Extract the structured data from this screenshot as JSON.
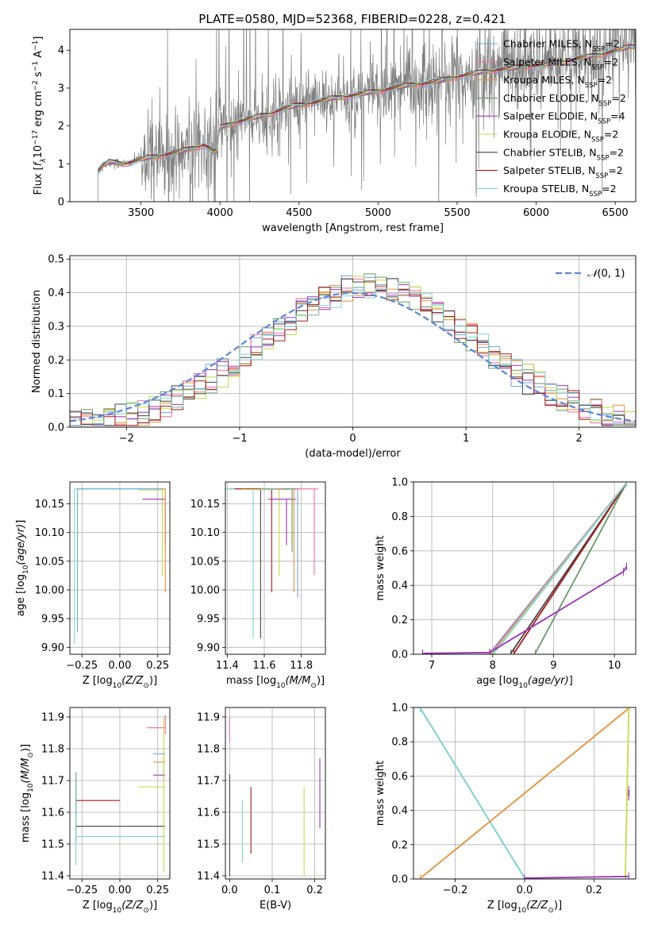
{
  "figure_title": "PLATE=0580, MJD=52368, FIBERID=0228, z=0.421",
  "colors": {
    "c_miles": "#6fa8dc",
    "s_miles": "#f06aa8",
    "k_miles": "#e69138",
    "c_elodie": "#6b9a6b",
    "s_elodie": "#9b34b8",
    "k_elodie": "#c9d84a",
    "c_stelib": "#444444",
    "s_stelib": "#aa1a1a",
    "k_stelib": "#7fd3d3",
    "data": "#808080",
    "gauss": "#5b86d6"
  },
  "legend_spectrum": [
    {
      "pre": "Chabrier MILES, N",
      "sub": "SSP",
      "post": "=2",
      "key": "c_miles"
    },
    {
      "pre": "Salpeter MILES, N",
      "sub": "SSP",
      "post": "=2",
      "key": "s_miles"
    },
    {
      "pre": "Kroupa MILES, N",
      "sub": "SSP",
      "post": "=2",
      "key": "k_miles"
    },
    {
      "pre": "Chabrier ELODIE, N",
      "sub": "SSP",
      "post": "=2",
      "key": "c_elodie"
    },
    {
      "pre": "Salpeter ELODIE, N",
      "sub": "SSP",
      "post": "=4",
      "key": "s_elodie"
    },
    {
      "pre": "Kroupa ELODIE, N",
      "sub": "SSP",
      "post": "=2",
      "key": "k_elodie"
    },
    {
      "pre": "Chabrier STELIB, N",
      "sub": "SSP",
      "post": "=2",
      "key": "c_stelib"
    },
    {
      "pre": "Salpeter STELIB, N",
      "sub": "SSP",
      "post": "=2",
      "key": "s_stelib"
    },
    {
      "pre": "Kroupa STELIB, N",
      "sub": "SSP",
      "post": "=2",
      "key": "k_stelib"
    }
  ],
  "chart_data": [
    {
      "id": "spectrum",
      "type": "line",
      "xlabel": "wavelength [Angstrom, rest frame]",
      "ylabel": {
        "pre": "Flux [",
        "fl": "f",
        "flsub": "λ",
        "mid": "10",
        "exp1": "−17",
        "mid2": " erg cm",
        "exp2": "−2",
        "mid3": " s",
        "exp3": "−1",
        "mid4": " A",
        "exp4": "−1",
        "post": "]"
      },
      "xlim": [
        3050,
        6630
      ],
      "ylim": [
        0,
        4.55
      ],
      "xticks": [
        3500,
        4000,
        4500,
        5000,
        5500,
        6000,
        6500
      ],
      "yticks": [
        0,
        1,
        2,
        3,
        4
      ],
      "continuum_x": [
        3230,
        3260,
        3300,
        3400,
        3500,
        3600,
        3700,
        3800,
        3900,
        3970,
        4000,
        4100,
        4200,
        4300,
        4400,
        4500,
        4600,
        4700,
        4800,
        4900,
        5000,
        5100,
        5200,
        5300,
        5400,
        5500,
        5600,
        5700,
        5800,
        5900,
        6000,
        6100,
        6200,
        6300,
        6400,
        6500,
        6600
      ],
      "continuum_y": [
        0.8,
        0.95,
        1.05,
        1.0,
        1.12,
        1.2,
        1.28,
        1.38,
        1.5,
        1.3,
        1.95,
        2.1,
        2.2,
        2.3,
        2.45,
        2.55,
        2.62,
        2.72,
        2.78,
        2.85,
        2.92,
        3.0,
        3.08,
        3.12,
        3.2,
        3.3,
        3.38,
        3.45,
        3.5,
        3.55,
        3.6,
        3.65,
        3.72,
        3.8,
        3.88,
        3.98,
        4.1
      ]
    },
    {
      "id": "residuals",
      "type": "histogram",
      "xlabel": "(data-model)/error",
      "ylabel": "Normed distribution",
      "xlim": [
        -2.5,
        2.5
      ],
      "ylim": [
        0,
        0.51
      ],
      "xticks": [
        -2,
        -1,
        0,
        1,
        2
      ],
      "yticks": [
        0.0,
        0.1,
        0.2,
        0.3,
        0.4,
        0.5
      ],
      "legend": {
        "pre": "𝒩",
        "post": "(0, 1)"
      },
      "gaussian": {
        "mu": 0,
        "sigma": 1
      }
    },
    {
      "id": "age_vs_Z",
      "type": "errorbar",
      "xlabel": {
        "pre": "Z [log",
        "sub": "10",
        "it": "(Z/Z",
        "odot": "⊙",
        "post": ")]"
      },
      "ylabel": {
        "pre": "age  [log",
        "sub": "10",
        "it": "(age/yr)",
        "post": "]"
      },
      "xlim": [
        -0.33,
        0.33
      ],
      "ylim": [
        9.888,
        10.188
      ],
      "xticks": [
        -0.25,
        0.0,
        0.25
      ],
      "yticks": [
        9.9,
        9.95,
        10.0,
        10.05,
        10.1,
        10.15
      ],
      "points": [
        {
          "key": "k_stelib",
          "x": -0.3,
          "y": 10.176,
          "xerr": [
            0,
            0.6
          ],
          "yerr": [
            0.27,
            0
          ]
        },
        {
          "key": "c_miles",
          "x": -0.28,
          "y": 10.176,
          "xerr": [
            0,
            0.58
          ],
          "yerr": [
            0.25,
            0
          ]
        },
        {
          "key": "k_elodie",
          "x": 0.28,
          "y": 10.174,
          "xerr": [
            0.16,
            0.01
          ],
          "yerr": [
            0.15,
            0
          ]
        },
        {
          "key": "s_elodie",
          "x": 0.3,
          "y": 10.158,
          "xerr": [
            0.15,
            0
          ],
          "yerr": [
            0.08,
            0
          ]
        },
        {
          "key": "k_miles",
          "x": 0.3,
          "y": 10.176,
          "xerr": [
            0.02,
            0
          ],
          "yerr": [
            0.18,
            0
          ]
        }
      ]
    },
    {
      "id": "age_vs_mass",
      "type": "errorbar",
      "xlabel": {
        "pre": "mass [log",
        "sub": "10",
        "it": "(M/M",
        "odot": "⊙",
        "post": ")]"
      },
      "ylabel": null,
      "xlim": [
        11.39,
        11.93
      ],
      "ylim": [
        9.888,
        10.188
      ],
      "xticks": [
        11.4,
        11.6,
        11.8
      ],
      "yticks": [
        9.9,
        9.95,
        10.0,
        10.05,
        10.1,
        10.15
      ],
      "points": [
        {
          "key": "c_stelib",
          "x": 11.58,
          "y": 10.176,
          "xerr": [
            0.17,
            0.05
          ],
          "yerr": [
            0.26,
            0
          ]
        },
        {
          "key": "k_stelib",
          "x": 11.54,
          "y": 10.176,
          "xerr": [
            0.15,
            0.2
          ],
          "yerr": [
            0.26,
            0
          ]
        },
        {
          "key": "s_stelib",
          "x": 11.64,
          "y": 10.176,
          "xerr": [
            0.2,
            0.1
          ],
          "yerr": [
            0.18,
            0
          ]
        },
        {
          "key": "k_elodie",
          "x": 11.68,
          "y": 10.175,
          "xerr": [
            0.2,
            0.05
          ],
          "yerr": [
            0.15,
            0
          ]
        },
        {
          "key": "s_elodie",
          "x": 11.72,
          "y": 10.158,
          "xerr": [
            0.1,
            0.05
          ],
          "yerr": [
            0.08,
            0
          ]
        },
        {
          "key": "k_miles",
          "x": 11.76,
          "y": 10.176,
          "xerr": [
            0.15,
            0.02
          ],
          "yerr": [
            0.18,
            0
          ]
        },
        {
          "key": "c_miles",
          "x": 11.78,
          "y": 10.176,
          "xerr": [
            0.2,
            0.01
          ],
          "yerr": [
            0.19,
            0
          ]
        },
        {
          "key": "s_miles",
          "x": 11.87,
          "y": 10.176,
          "xerr": [
            0.2,
            0.02
          ],
          "yerr": [
            0.15,
            0
          ]
        },
        {
          "key": "c_elodie",
          "x": 11.75,
          "y": 10.176,
          "xerr": [
            0.05,
            0.02
          ],
          "yerr": [
            0.11,
            0
          ]
        }
      ]
    },
    {
      "id": "mass_weight_vs_age",
      "type": "line",
      "xlabel": {
        "pre": "age  [log",
        "sub": "10",
        "it": "(age/yr)",
        "post": "]"
      },
      "ylabel": "mass weight",
      "xlim": [
        6.7,
        10.35
      ],
      "ylim": [
        0,
        1.0
      ],
      "xticks": [
        7,
        8,
        9,
        10
      ],
      "yticks": [
        0.0,
        0.2,
        0.4,
        0.6,
        0.8,
        1.0
      ],
      "series": [
        {
          "key": "c_miles",
          "x": [
            7.95,
            10.2
          ],
          "y": [
            0.005,
            0.995
          ]
        },
        {
          "key": "s_miles",
          "x": [
            7.97,
            10.2
          ],
          "y": [
            0.005,
            0.995
          ]
        },
        {
          "key": "k_miles",
          "x": [
            8.0,
            10.2
          ],
          "y": [
            0.005,
            0.995
          ]
        },
        {
          "key": "c_elodie",
          "x": [
            8.7,
            10.2
          ],
          "y": [
            0.005,
            0.995
          ]
        },
        {
          "key": "k_elodie",
          "x": [
            8.0,
            10.2
          ],
          "y": [
            0.005,
            0.995
          ]
        },
        {
          "key": "c_stelib",
          "x": [
            8.3,
            10.2
          ],
          "y": [
            0.005,
            0.995
          ]
        },
        {
          "key": "s_stelib",
          "x": [
            8.35,
            10.2
          ],
          "y": [
            0.005,
            0.995
          ]
        },
        {
          "key": "k_stelib",
          "x": [
            8.02,
            10.2
          ],
          "y": [
            0.005,
            0.995
          ]
        },
        {
          "key": "s_elodie",
          "x": [
            6.85,
            7.95,
            10.15,
            10.2
          ],
          "y": [
            0.005,
            0.01,
            0.48,
            0.51
          ]
        }
      ]
    },
    {
      "id": "mass_vs_Z",
      "type": "errorbar",
      "xlabel": {
        "pre": "Z [log",
        "sub": "10",
        "it": "(Z/Z",
        "odot": "⊙",
        "post": ")]"
      },
      "ylabel": {
        "pre": "mass [log",
        "sub": "10",
        "it": "(M/M",
        "odot": "⊙",
        "post": ")]"
      },
      "xlim": [
        -0.33,
        0.33
      ],
      "ylim": [
        11.39,
        11.93
      ],
      "xticks": [
        -0.25,
        0.0,
        0.25
      ],
      "yticks": [
        11.4,
        11.5,
        11.6,
        11.7,
        11.8,
        11.9
      ],
      "points": [
        {
          "key": "s_stelib",
          "x": -0.29,
          "y": 11.637,
          "xerr": [
            0,
            0.29
          ],
          "yerr": [
            0.04,
            0.08
          ]
        },
        {
          "key": "c_stelib",
          "x": -0.29,
          "y": 11.556,
          "xerr": [
            0,
            0.59
          ],
          "yerr": [
            0.05,
            0.17
          ]
        },
        {
          "key": "k_stelib",
          "x": -0.29,
          "y": 11.524,
          "xerr": [
            0,
            0.59
          ],
          "yerr": [
            0.09,
            0.2
          ]
        },
        {
          "key": "s_miles",
          "x": 0.3,
          "y": 11.866,
          "xerr": [
            0.12,
            0
          ],
          "yerr": [
            0.02,
            0.04
          ]
        },
        {
          "key": "c_miles",
          "x": 0.29,
          "y": 11.784,
          "xerr": [
            0.07,
            0.01
          ],
          "yerr": [
            0.02,
            0.02
          ]
        },
        {
          "key": "k_miles",
          "x": 0.29,
          "y": 11.758,
          "xerr": [
            0.07,
            0.01
          ],
          "yerr": [
            0.02,
            0.02
          ]
        },
        {
          "key": "s_elodie",
          "x": 0.29,
          "y": 11.717,
          "xerr": [
            0.07,
            0.01
          ],
          "yerr": [
            0.02,
            0.02
          ]
        },
        {
          "key": "k_elodie",
          "x": 0.29,
          "y": 11.68,
          "xerr": [
            0.17,
            0.01
          ],
          "yerr": [
            0.27,
            0.22
          ]
        }
      ]
    },
    {
      "id": "mass_vs_EBV",
      "type": "errorbar",
      "xlabel": "E(B-V)",
      "ylabel": null,
      "xlim": [
        -0.01,
        0.225
      ],
      "ylim": [
        11.39,
        11.93
      ],
      "xticks": [
        0.0,
        0.1,
        0.2
      ],
      "yticks": [
        11.4,
        11.5,
        11.6,
        11.7,
        11.8,
        11.9
      ],
      "points": [
        {
          "key": "c_stelib",
          "x": 0.0,
          "y": 11.6,
          "xerr": [
            0,
            0
          ],
          "yerr": [
            0.2,
            0.12
          ]
        },
        {
          "key": "s_miles",
          "x": 0.0,
          "y": 11.87,
          "xerr": [
            0,
            0
          ],
          "yerr": [
            0.05,
            0.03
          ]
        },
        {
          "key": "k_stelib",
          "x": 0.03,
          "y": 11.54,
          "xerr": [
            0,
            0
          ],
          "yerr": [
            0.1,
            0.1
          ]
        },
        {
          "key": "s_stelib",
          "x": 0.05,
          "y": 11.58,
          "xerr": [
            0,
            0
          ],
          "yerr": [
            0.11,
            0.1
          ]
        },
        {
          "key": "k_elodie",
          "x": 0.175,
          "y": 11.55,
          "xerr": [
            0,
            0
          ],
          "yerr": [
            0.15,
            0.13
          ]
        },
        {
          "key": "s_elodie",
          "x": 0.212,
          "y": 11.66,
          "xerr": [
            0,
            0
          ],
          "yerr": [
            0.11,
            0.11
          ]
        }
      ]
    },
    {
      "id": "mass_weight_vs_Z",
      "type": "line",
      "xlabel": {
        "pre": "Z [log",
        "sub": "10",
        "it": "(Z/Z",
        "odot": "⊙",
        "post": ")]"
      },
      "ylabel": "mass weight",
      "xlim": [
        -0.32,
        0.32
      ],
      "ylim": [
        0,
        1.0
      ],
      "xticks": [
        -0.2,
        0.0,
        0.2
      ],
      "yticks": [
        0.0,
        0.2,
        0.4,
        0.6,
        0.8,
        1.0
      ],
      "series": [
        {
          "key": "c_miles",
          "x": [
            -0.3,
            0.0
          ],
          "y": [
            0.995,
            0.005
          ]
        },
        {
          "key": "k_stelib",
          "x": [
            -0.3,
            0.0
          ],
          "y": [
            0.995,
            0.005
          ]
        },
        {
          "key": "k_miles",
          "x": [
            -0.3,
            0.3
          ],
          "y": [
            0.005,
            0.995
          ]
        },
        {
          "key": "k_elodie",
          "x": [
            0.29,
            0.3
          ],
          "y": [
            0.005,
            0.995
          ]
        },
        {
          "key": "s_elodie",
          "x": [
            0.0,
            0.3
          ],
          "y": [
            0.005,
            0.015
          ]
        },
        {
          "key": "s_elodie",
          "x": [
            0.3,
            0.3
          ],
          "y": [
            0.48,
            0.52
          ]
        }
      ]
    }
  ]
}
